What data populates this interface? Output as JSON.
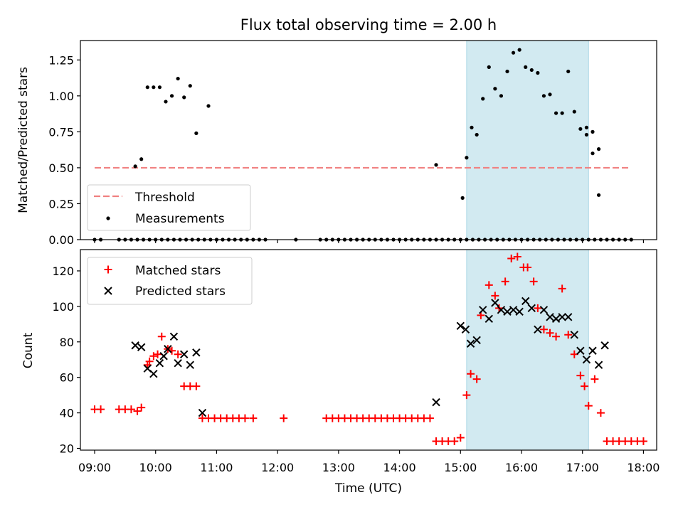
{
  "chart_data": [
    {
      "type": "scatter",
      "title": "Flux total observing time = 2.00 h",
      "xlabel": "",
      "ylabel": "Matched/Predicted stars",
      "xlim": [
        "08:46",
        "18:13"
      ],
      "ylim": [
        0,
        1.385
      ],
      "yticks": [
        0.0,
        0.25,
        0.5,
        0.75,
        1.0,
        1.25
      ],
      "ytick_labels": [
        "0.00",
        "0.25",
        "0.50",
        "0.75",
        "1.00",
        "1.25"
      ],
      "xticks": [
        "09:00",
        "10:00",
        "11:00",
        "12:00",
        "13:00",
        "14:00",
        "15:00",
        "16:00",
        "17:00",
        "18:00"
      ],
      "grid": false,
      "legend_position": "lower-left",
      "highlight_span": {
        "x": [
          "15:06",
          "17:06"
        ],
        "color": "#add8e6"
      },
      "threshold": {
        "name": "Threshold",
        "value": 0.5,
        "x": [
          "09:00",
          "17:45"
        ],
        "color": "#f08080"
      },
      "series": [
        {
          "name": "Measurements",
          "color": "#000000",
          "marker": "dot",
          "x": [
            "09:00",
            "09:06",
            "09:24",
            "09:30",
            "09:36",
            "09:42",
            "09:48",
            "09:54",
            "10:00",
            "10:06",
            "10:12",
            "10:18",
            "10:24",
            "10:30",
            "10:36",
            "10:42",
            "10:48",
            "10:54",
            "11:00",
            "11:06",
            "11:12",
            "11:18",
            "11:24",
            "11:30",
            "11:36",
            "11:42",
            "11:48",
            "12:18",
            "12:42",
            "12:48",
            "12:54",
            "13:00",
            "13:06",
            "13:12",
            "13:18",
            "13:24",
            "13:30",
            "13:36",
            "13:42",
            "13:48",
            "13:54",
            "14:00",
            "14:06",
            "14:12",
            "14:18",
            "14:24",
            "14:30",
            "14:36",
            "14:42",
            "14:48",
            "14:54",
            "15:00",
            "15:06",
            "15:12",
            "15:18",
            "15:24",
            "15:30",
            "15:36",
            "15:42",
            "15:48",
            "15:54",
            "16:00",
            "16:06",
            "16:12",
            "16:18",
            "16:24",
            "16:30",
            "16:36",
            "16:42",
            "16:48",
            "16:54",
            "17:00",
            "17:06",
            "17:12",
            "17:18",
            "17:24",
            "17:30",
            "17:36",
            "17:42",
            "17:48"
          ],
          "y": [
            0,
            0,
            0,
            0,
            0,
            0,
            0,
            0,
            0,
            0,
            0,
            0,
            0,
            0,
            0,
            0,
            0,
            0,
            0,
            0,
            0,
            0,
            0,
            0,
            0,
            0,
            0,
            0,
            0,
            0,
            0,
            0,
            0,
            0,
            0,
            0,
            0,
            0,
            0,
            0,
            0,
            0,
            0,
            0,
            0,
            0,
            0,
            0,
            0,
            0,
            0,
            0,
            0,
            0,
            0,
            0,
            0,
            0,
            0,
            0,
            0,
            0,
            0,
            0,
            0,
            0,
            0,
            0,
            0,
            0,
            0,
            0,
            0,
            0,
            0,
            0,
            0,
            0,
            0,
            0
          ]
        },
        {
          "name": "",
          "color": "#000000",
          "marker": "dot",
          "x": [
            "09:40",
            "09:46",
            "09:52",
            "09:58",
            "10:04",
            "10:10",
            "10:16",
            "10:22",
            "10:28",
            "10:34",
            "10:40",
            "10:52",
            "14:36",
            "15:02",
            "15:06",
            "15:11",
            "15:16",
            "15:22",
            "15:28",
            "15:34",
            "15:40",
            "15:46",
            "15:52",
            "15:58",
            "16:04",
            "16:10",
            "16:16",
            "16:22",
            "16:28",
            "16:34",
            "16:40",
            "16:46",
            "16:52",
            "16:58",
            "17:04",
            "17:10",
            "17:16"
          ],
          "y": [
            0.51,
            0.56,
            1.06,
            1.06,
            1.06,
            0.96,
            1.0,
            1.12,
            0.99,
            1.07,
            0.74,
            0.93,
            0.52,
            0.29,
            0.57,
            0.78,
            0.73,
            0.98,
            1.2,
            1.05,
            1.0,
            1.17,
            1.3,
            1.32,
            1.2,
            1.18,
            1.16,
            1.0,
            1.01,
            0.88,
            0.88,
            1.17,
            0.89,
            0.77,
            0.73,
            0.75,
            0.63
          ]
        },
        {
          "name": "",
          "color": "#000000",
          "marker": "dot",
          "x": [
            "17:04",
            "17:10",
            "17:16"
          ],
          "y": [
            0.78,
            0.6,
            0.31
          ]
        }
      ]
    },
    {
      "type": "scatter",
      "title": "",
      "xlabel": "Time (UTC)",
      "ylabel": "Count",
      "xlim": [
        "08:46",
        "18:13"
      ],
      "ylim": [
        19,
        132
      ],
      "yticks": [
        20,
        40,
        60,
        80,
        100,
        120
      ],
      "ytick_labels": [
        "20",
        "40",
        "60",
        "80",
        "100",
        "120"
      ],
      "xticks": [
        "09:00",
        "10:00",
        "11:00",
        "12:00",
        "13:00",
        "14:00",
        "15:00",
        "16:00",
        "17:00",
        "18:00"
      ],
      "xtick_labels": [
        "09:00",
        "10:00",
        "11:00",
        "12:00",
        "13:00",
        "14:00",
        "15:00",
        "16:00",
        "17:00",
        "18:00"
      ],
      "grid": false,
      "legend_position": "upper-left",
      "highlight_span": {
        "x": [
          "15:06",
          "17:06"
        ],
        "color": "#add8e6"
      },
      "series": [
        {
          "name": "Matched stars",
          "color": "#ff0000",
          "marker": "plus",
          "x": [
            "09:00",
            "09:06",
            "09:24",
            "09:30",
            "09:36",
            "09:42",
            "09:46",
            "09:54",
            "09:52",
            "09:58",
            "10:02",
            "10:06",
            "10:12",
            "10:16",
            "10:22",
            "10:28",
            "10:34",
            "10:40",
            "10:46",
            "10:52",
            "10:58",
            "11:04",
            "11:10",
            "11:16",
            "11:22",
            "11:28",
            "11:36",
            "12:06",
            "12:48",
            "12:54",
            "13:00",
            "13:06",
            "13:12",
            "13:18",
            "13:24",
            "13:30",
            "13:36",
            "13:42",
            "13:48",
            "13:54",
            "14:00",
            "14:06",
            "14:12",
            "14:18",
            "14:24",
            "14:30",
            "14:36",
            "14:42",
            "14:48",
            "14:54",
            "15:00",
            "15:06",
            "15:10",
            "15:16",
            "15:20",
            "15:28",
            "15:34",
            "15:38",
            "15:44",
            "15:50",
            "15:56",
            "16:02",
            "16:06",
            "16:12",
            "16:16",
            "16:22",
            "16:28",
            "16:34",
            "16:40",
            "16:46",
            "16:52",
            "16:58",
            "17:02",
            "17:06",
            "17:12",
            "17:18",
            "17:24",
            "17:30",
            "17:36",
            "17:42",
            "17:48"
          ],
          "y": [
            42,
            42,
            42,
            42,
            42,
            41,
            43,
            69,
            67,
            72,
            73,
            83,
            76,
            75,
            73,
            55,
            55,
            55,
            37,
            37,
            37,
            37,
            37,
            37,
            37,
            37,
            37,
            37,
            37,
            37,
            37,
            37,
            37,
            37,
            37,
            37,
            37,
            37,
            37,
            37,
            37,
            37,
            37,
            37,
            37,
            37,
            24,
            24,
            24,
            24,
            26,
            50,
            62,
            59,
            95,
            112,
            106,
            99,
            114,
            127,
            128,
            122,
            122,
            114,
            99,
            87,
            85,
            83,
            110,
            84,
            73,
            61,
            55,
            44,
            59,
            40,
            24,
            24,
            24,
            24,
            24
          ]
        },
        {
          "name": "",
          "color": "#ff0000",
          "marker": "plus",
          "x": [
            "17:54",
            "18:00"
          ],
          "y": [
            24,
            24
          ]
        },
        {
          "name": "Predicted stars",
          "color": "#000000",
          "marker": "x",
          "x": [
            "09:40",
            "09:46",
            "09:52",
            "09:58",
            "10:04",
            "10:08",
            "10:12",
            "10:18",
            "10:22",
            "10:28",
            "10:34",
            "10:40",
            "10:46",
            "14:36",
            "15:00",
            "15:05",
            "15:10",
            "15:16",
            "15:22",
            "15:28",
            "15:34",
            "15:40",
            "15:46",
            "15:52",
            "15:58",
            "16:04",
            "16:10",
            "16:16",
            "16:22",
            "16:28",
            "16:34",
            "16:40",
            "16:46",
            "16:52",
            "16:58",
            "17:04",
            "17:10",
            "17:16"
          ],
          "y": [
            78,
            77,
            65,
            62,
            68,
            72,
            76,
            83,
            68,
            73,
            67,
            74,
            40,
            46,
            89,
            87,
            79,
            81,
            98,
            93,
            102,
            98,
            97,
            98,
            97,
            103,
            99,
            87,
            98,
            94,
            93,
            94,
            94,
            84,
            75,
            70,
            75,
            67
          ]
        },
        {
          "name": "",
          "color": "#000000",
          "marker": "x",
          "x": [
            "17:22"
          ],
          "y": [
            78
          ]
        }
      ]
    }
  ]
}
